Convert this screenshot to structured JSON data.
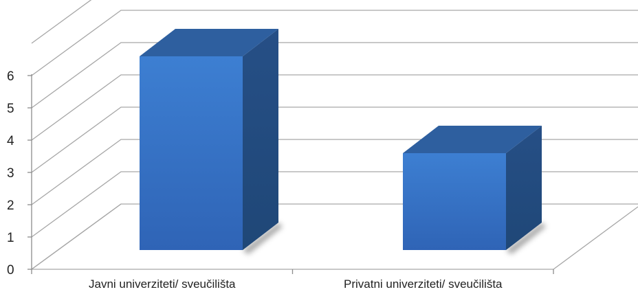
{
  "chart_data": {
    "type": "bar",
    "categories": [
      "Javni univerziteti/ sveučilišta",
      "Privatni univerziteti/ sveučilišta"
    ],
    "values": [
      6,
      3
    ],
    "ylim": [
      0,
      6
    ],
    "yticks": [
      0,
      1,
      2,
      3,
      4,
      5,
      6
    ],
    "grid": true,
    "style": "3d-column",
    "colors": {
      "bar_front_top": "#3d7fd2",
      "bar_front_bottom": "#2f64b6",
      "bar_side": "#1f4777",
      "bar_top": "#2e5f9f",
      "grid": "#a6a6a6"
    }
  }
}
